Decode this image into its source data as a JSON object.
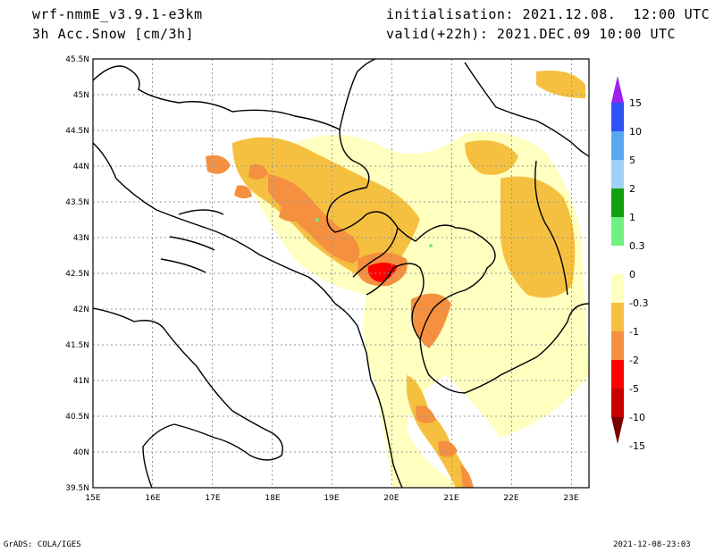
{
  "header": {
    "model": "wrf-nmmE_v3.9.1-e3km",
    "field": "3h Acc.Snow [cm/3h]",
    "init": "initialisation: 2021.12.08.  12:00 UTC",
    "valid": "valid(+22h): 2021.DEC.09 10:00 UTC"
  },
  "map": {
    "lat_labels": [
      "45.5N",
      "45N",
      "44.5N",
      "44N",
      "43.5N",
      "43N",
      "42.5N",
      "42N",
      "41.5N",
      "41N",
      "40.5N",
      "40N",
      "39.5N"
    ],
    "lon_labels": [
      "15E",
      "16E",
      "17E",
      "18E",
      "19E",
      "20E",
      "21E",
      "22E",
      "23E"
    ],
    "lat_range": [
      39.5,
      45.5
    ],
    "lon_range": [
      15,
      23.3
    ]
  },
  "legend": {
    "labels": [
      "15",
      "10",
      "5",
      "2",
      "1",
      "0.3",
      "0",
      "-0.3",
      "-1",
      "-2",
      "-5",
      "-10",
      "-15"
    ],
    "colors": [
      "#a020f0",
      "#3050f8",
      "#58a8f0",
      "#a0d0f8",
      "#10a010",
      "#70f080",
      "#ffffff",
      "#ffffc0",
      "#f5c040",
      "#f59040",
      "#ff0000",
      "#c80000",
      "#780000"
    ]
  },
  "footer": {
    "left": "GrADS: COLA/IGES",
    "right": "2021-12-08-23:03"
  }
}
